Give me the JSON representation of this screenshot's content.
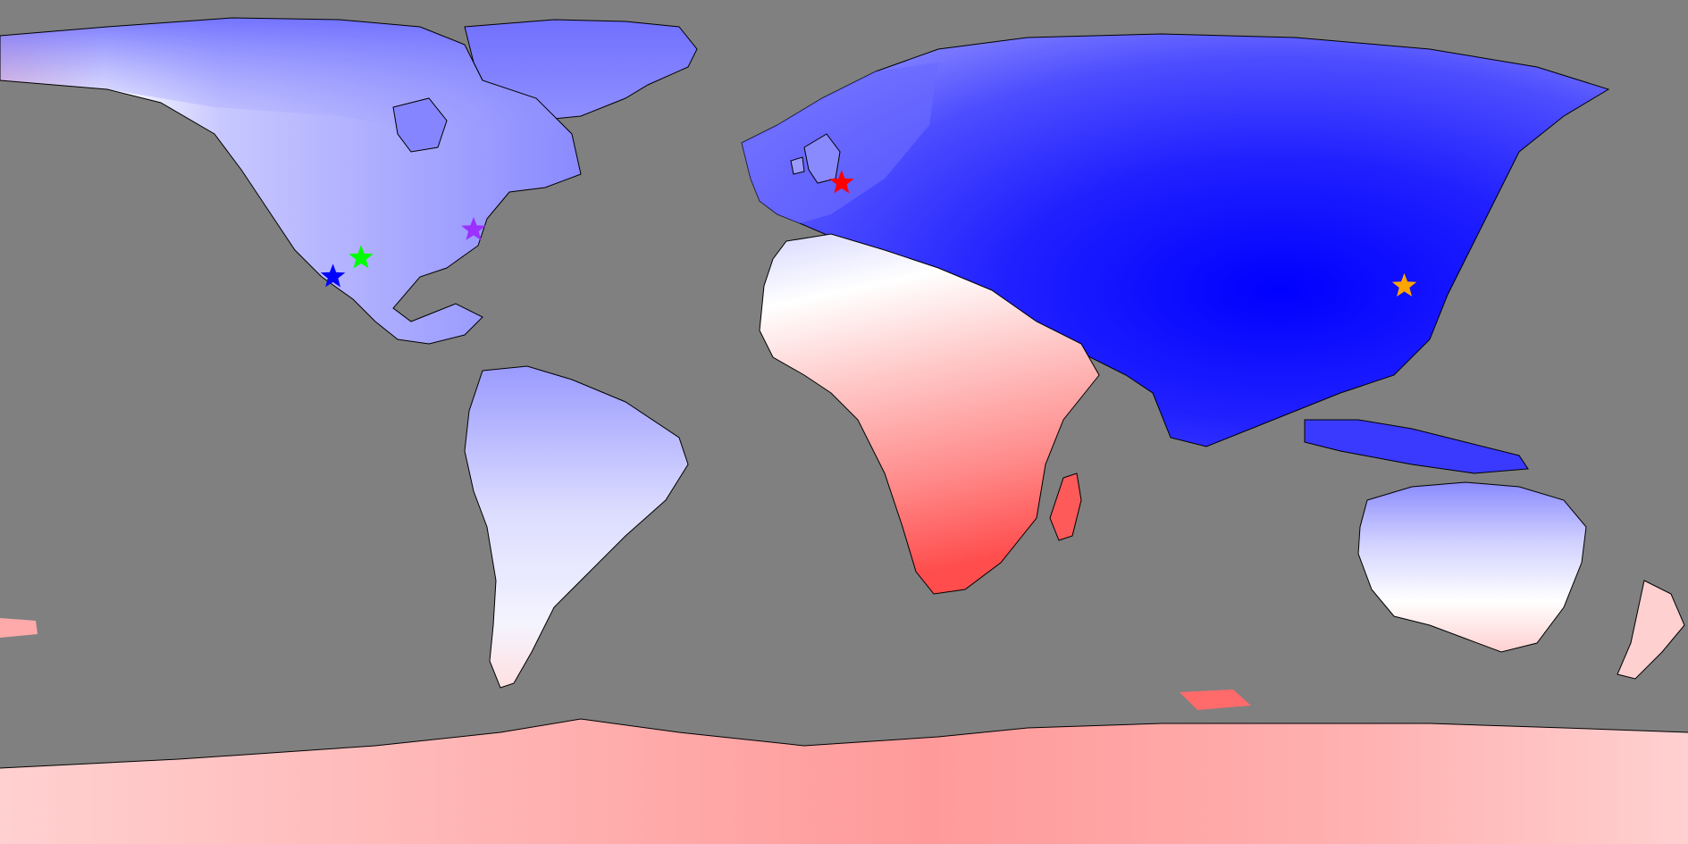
{
  "map": {
    "projection": "equirectangular",
    "background_color": "#808080",
    "coastline_color": "#000000",
    "color_scale": [
      "#0000ff",
      "#4d4dff",
      "#9a9aff",
      "#ffffff",
      "#ff9a9a",
      "#ff4d4d"
    ],
    "markers": [
      {
        "name": "marker-star-blue",
        "color": "#0000ff",
        "lon": -109,
        "lat": 31
      },
      {
        "name": "marker-star-green",
        "color": "#00ff00",
        "lon": -103,
        "lat": 35
      },
      {
        "name": "marker-star-purple",
        "color": "#9b30ff",
        "lon": -79,
        "lat": 41
      },
      {
        "name": "marker-star-red",
        "color": "#ff0000",
        "lon": -0.5,
        "lat": 51
      },
      {
        "name": "marker-star-orange",
        "color": "#ffa500",
        "lon": 119.5,
        "lat": 29
      }
    ]
  }
}
